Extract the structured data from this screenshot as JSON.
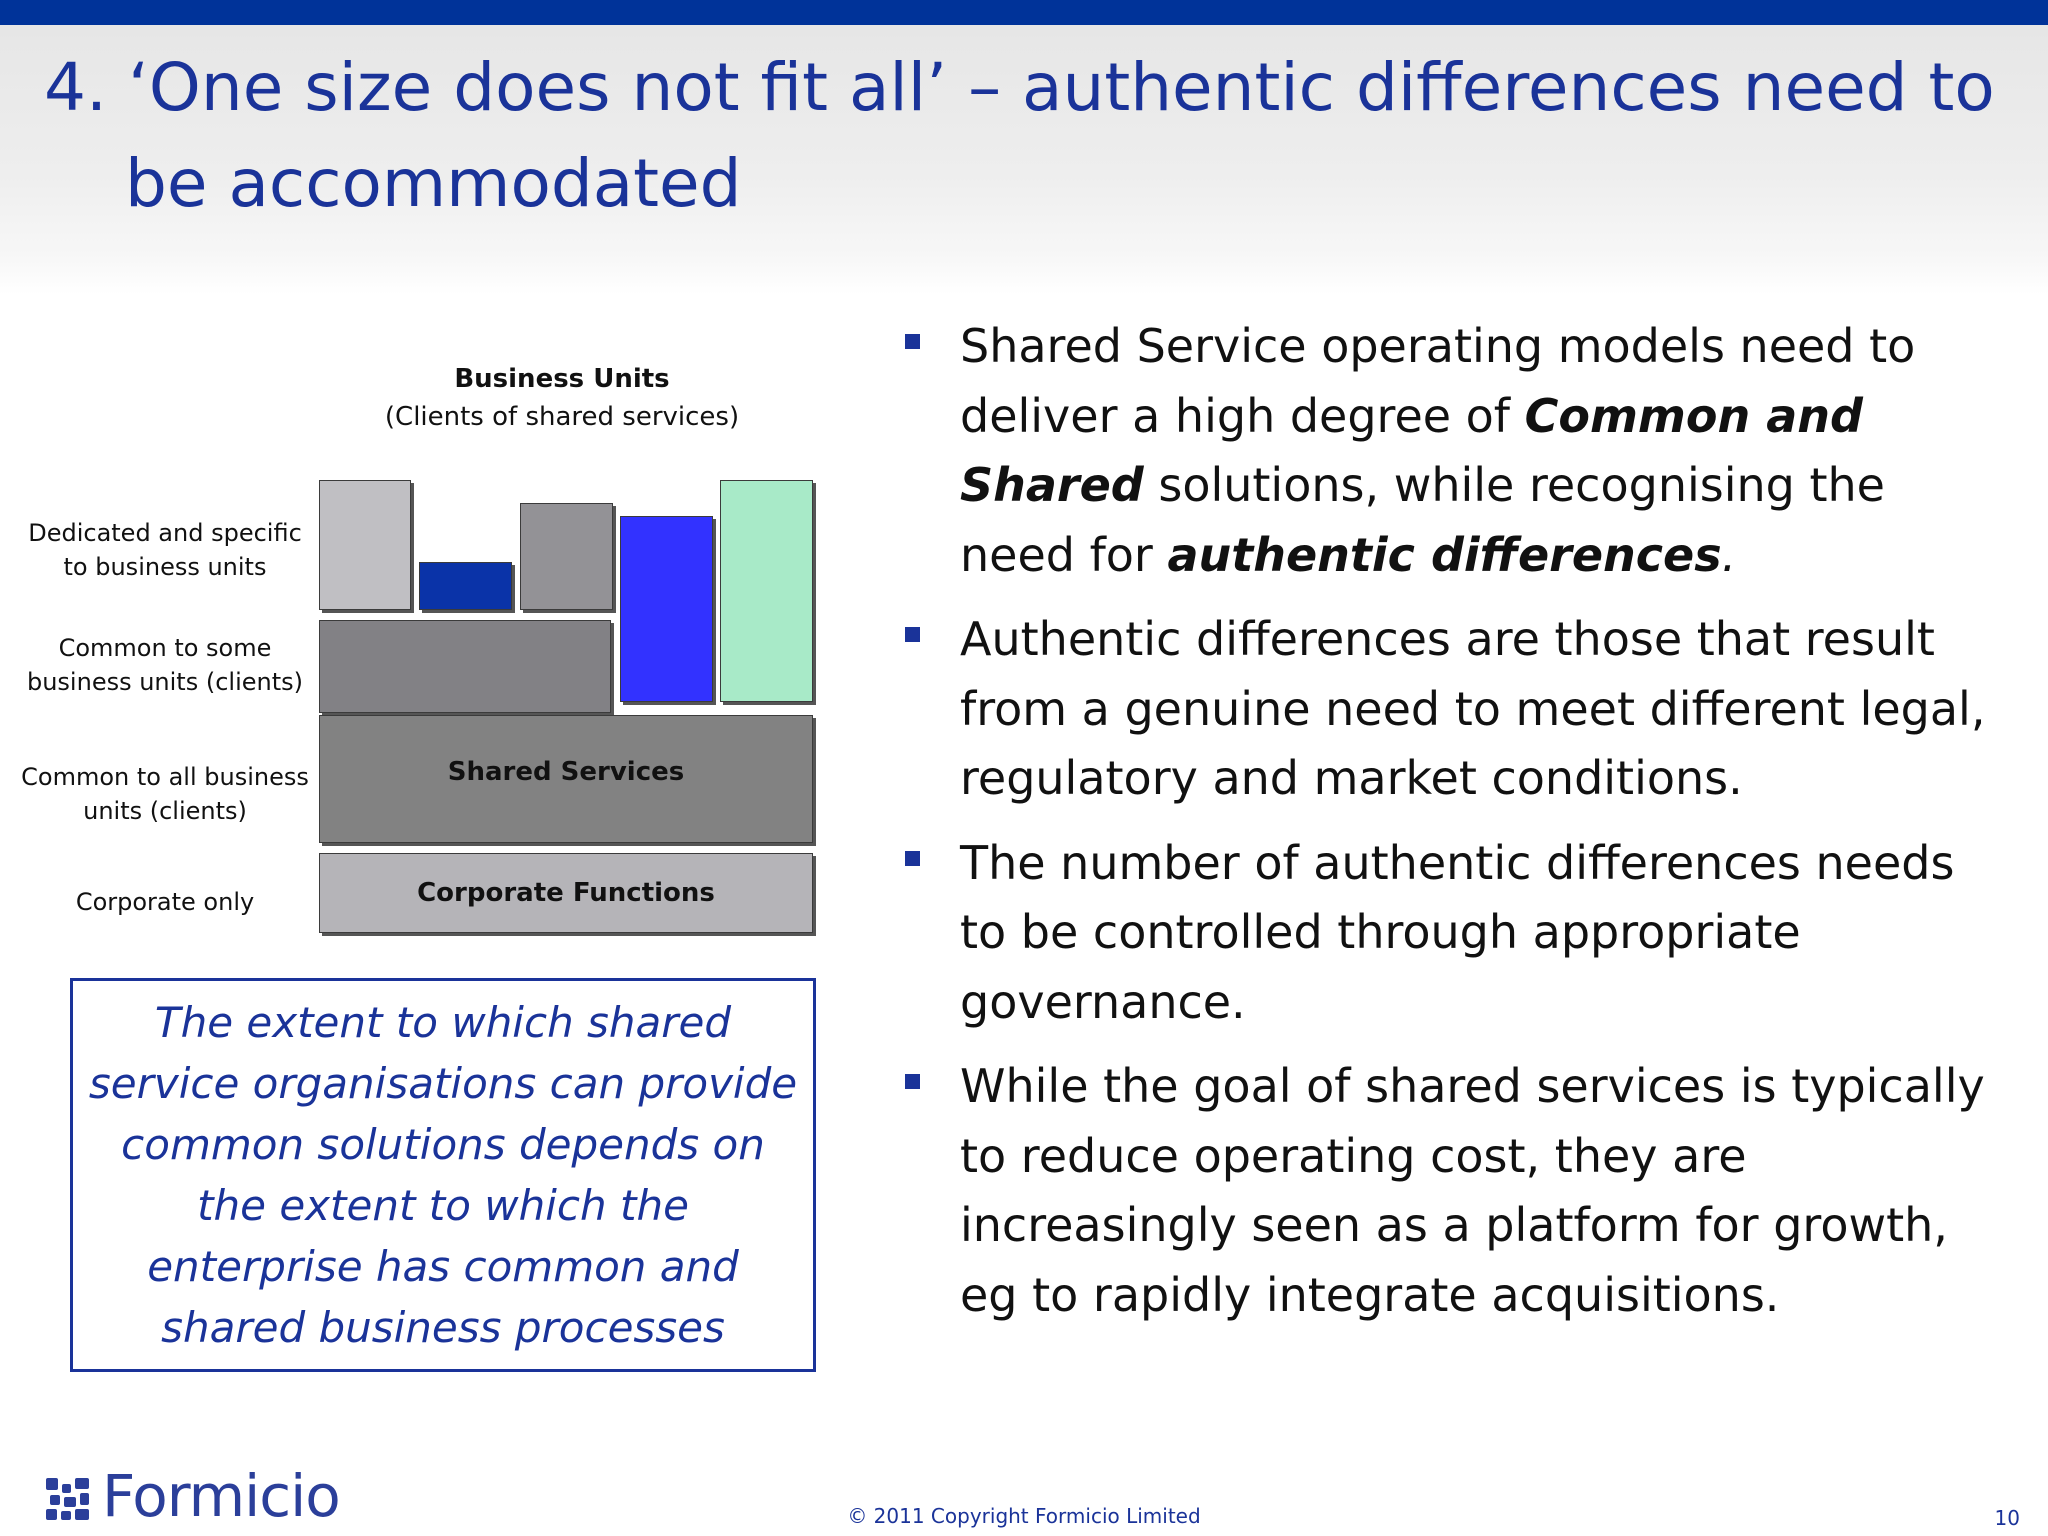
{
  "colors": {
    "top_bar": "#003399",
    "title_text": "#1a3399",
    "accent": "#1a3399"
  },
  "header": {
    "title_line1": "4. ‘One size does not fit all’ – authentic differences need to",
    "title_line2": "be accommodated"
  },
  "diagram": {
    "axis_title": "Business Units",
    "axis_subtitle": "(Clients of shared services)",
    "row_labels": {
      "dedicated_1": "Dedicated and specific",
      "dedicated_2": "to business units",
      "some_1": "Common to some",
      "some_2": "business units (clients)",
      "all_1": "Common to all business",
      "all_2": "units (clients)",
      "corporate": "Corporate only"
    },
    "shared_services_label": "Shared Services",
    "corporate_functions_label": "Corporate Functions",
    "block_colors": {
      "light_grey": "#c0bfc3",
      "dark_blue": "#0a33a8",
      "mid_grey": "#939296",
      "bright_blue": "#3232ff",
      "mint_green": "#a8eac8",
      "dark_grey": "#828185",
      "shared_grey": "#828282",
      "corporate_grey": "#b5b4b8"
    }
  },
  "quote": {
    "text": "The extent to which shared service organisations can provide common solutions depends on the extent to which the enterprise has common and shared business processes"
  },
  "bullets": {
    "b1": {
      "pre": "Shared Service operating models need to deliver a high degree of ",
      "em1": "Common and Shared",
      "mid": " solutions, while recognising the need for ",
      "em2": "authentic differences",
      "end": "."
    },
    "b2": "Authentic differences are those that result from a genuine need to meet different legal, regulatory and market conditions.",
    "b3": "The number of authentic differences needs to be controlled through appropriate governance.",
    "b4": "While the goal of shared services is typically to reduce operating cost, they are increasingly seen as a platform for growth, eg to rapidly integrate acquisitions."
  },
  "footer": {
    "logo_text": "Formicio",
    "copyright": "© 2011 Copyright Formicio Limited",
    "page_number": "10"
  }
}
